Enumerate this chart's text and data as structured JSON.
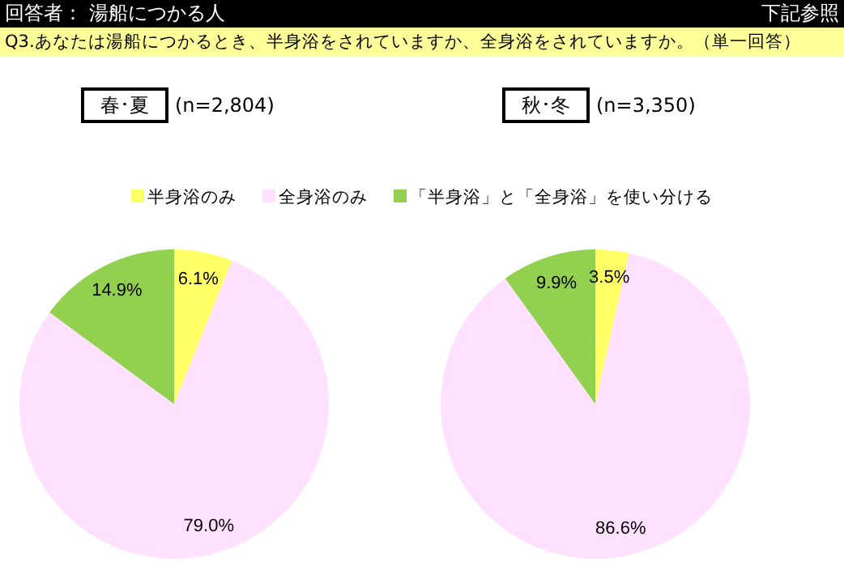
{
  "chart_data": [
    {
      "type": "pie",
      "title": "春･夏",
      "subtitle": "(n=2,804)",
      "annotations": [
        "回答者： 湯船につかる人",
        "下記参照",
        "Q3.あなたは湯船につかるとき、半身浴をされていますか、全身浴をされていますか。（単一回答）"
      ],
      "categories": [
        "半身浴のみ",
        "全身浴のみ",
        "「半身浴」と「全身浴」を使い分ける"
      ],
      "values": [
        6.1,
        79.0,
        14.9
      ],
      "value_labels": [
        "6.1%",
        "79.0%",
        "14.9%"
      ],
      "colors": [
        "#ffff66",
        "#ffe0ff",
        "#92d050"
      ],
      "legend": "top"
    },
    {
      "type": "pie",
      "title": "秋･冬",
      "subtitle": "(n=3,350)",
      "categories": [
        null,
        null,
        null
      ],
      "values": [
        3.5,
        86.6,
        9.9
      ],
      "value_labels": [
        "3.5%",
        "86.6%",
        "9.9%"
      ],
      "colors": [
        "#ffff66",
        "#ffe0ff",
        "#92d050"
      ]
    }
  ]
}
